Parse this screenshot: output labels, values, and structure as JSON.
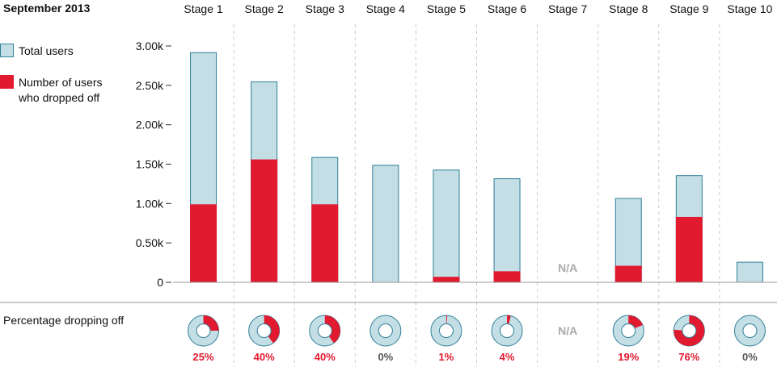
{
  "title": "September 2013",
  "legend": {
    "total_label": "Total users",
    "dropped_label": "Number of users who dropped off"
  },
  "bottom_label": "Percentage dropping off",
  "na_label": "N/A",
  "colors": {
    "total_fill": "#c3dee4",
    "total_stroke": "#2f7f98",
    "dropped": "#e11a2f",
    "axis_text": "#111111",
    "grid": "#cccccc",
    "pct_text": "#e11a2f",
    "pct_zero_text": "#555555",
    "na_text": "#aaaaaa"
  },
  "chart_data": {
    "type": "bar",
    "categories": [
      "Stage 1",
      "Stage 2",
      "Stage 3",
      "Stage 4",
      "Stage 5",
      "Stage 6",
      "Stage 7",
      "Stage 8",
      "Stage 9",
      "Stage 10"
    ],
    "series": [
      {
        "name": "Total users",
        "values": [
          2920,
          2550,
          1590,
          1490,
          1430,
          1320,
          null,
          1070,
          1360,
          260
        ]
      },
      {
        "name": "Number of users who dropped off",
        "values": [
          990,
          1560,
          990,
          0,
          70,
          140,
          null,
          210,
          830,
          0
        ]
      }
    ],
    "ytick_labels": [
      "0",
      "0.50k",
      "1.00k",
      "1.50k",
      "2.00k",
      "2.50k",
      "3.00k"
    ],
    "ytick_values": [
      0,
      500,
      1000,
      1500,
      2000,
      2500,
      3000
    ],
    "ylim": [
      0,
      3000
    ],
    "percent_values": [
      25,
      40,
      40,
      0,
      1,
      4,
      null,
      19,
      76,
      0
    ],
    "percent_labels": [
      "25%",
      "40%",
      "40%",
      "0%",
      "1%",
      "4%",
      "N/A",
      "19%",
      "76%",
      "0%"
    ],
    "legend_position": "left"
  }
}
